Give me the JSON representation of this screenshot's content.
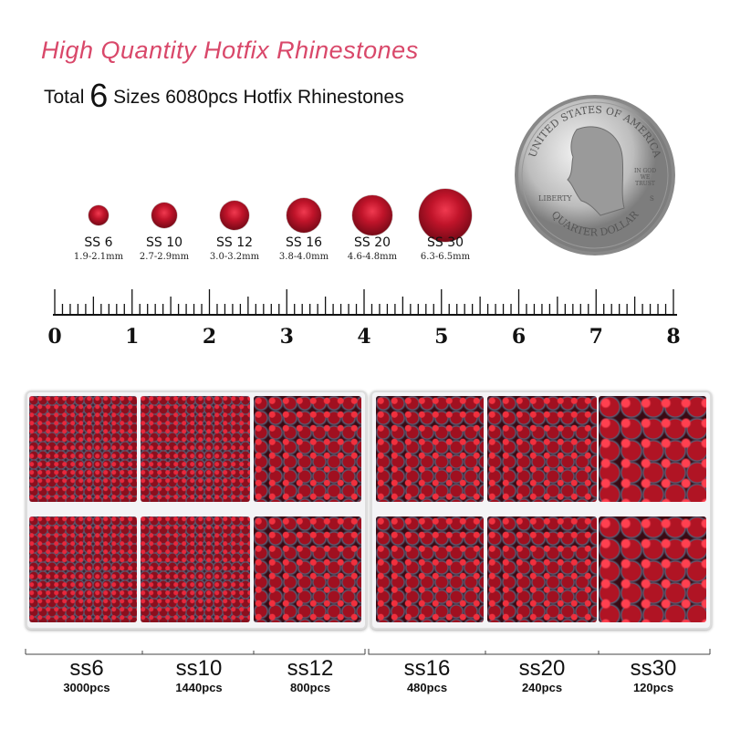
{
  "title": "High Quantity Hotfix Rhinestones",
  "subtitle": {
    "pre": "Total ",
    "num": "6",
    "post": " Sizes 6080pcs Hotfix Rhinestones"
  },
  "coin": {
    "top": "UNITED STATES OF AMERICA",
    "liberty": "LIBERTY",
    "motto": "IN GOD WE TRUST",
    "bottom": "QUARTER DOLLAR",
    "mint": "S"
  },
  "sizes": [
    {
      "label": "SS 6",
      "mm": "1.9-2.1mm"
    },
    {
      "label": "SS 10",
      "mm": "2.7-2.9mm"
    },
    {
      "label": "SS 12",
      "mm": "3.0-3.2mm"
    },
    {
      "label": "SS 16",
      "mm": "3.8-4.0mm"
    },
    {
      "label": "SS 20",
      "mm": "4.6-4.8mm"
    },
    {
      "label": "SS 30",
      "mm": "6.3-6.5mm"
    }
  ],
  "ruler": [
    "0",
    "1",
    "2",
    "3",
    "4",
    "5",
    "6",
    "7",
    "8"
  ],
  "counts": [
    {
      "name": "ss6",
      "pcs": "3000pcs"
    },
    {
      "name": "ss10",
      "pcs": "1440pcs"
    },
    {
      "name": "ss12",
      "pcs": "800pcs"
    },
    {
      "name": "ss16",
      "pcs": "480pcs"
    },
    {
      "name": "ss20",
      "pcs": "240pcs"
    },
    {
      "name": "ss30",
      "pcs": "120pcs"
    }
  ],
  "colors": {
    "title": "#d9486a",
    "stone": "#c0142a"
  }
}
